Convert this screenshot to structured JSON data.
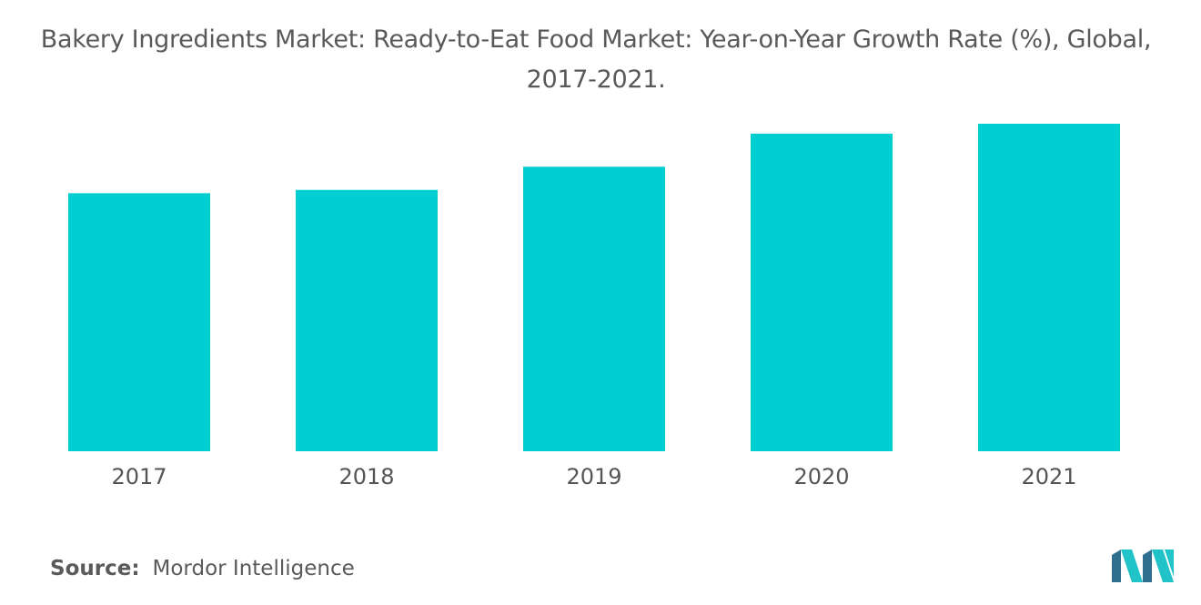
{
  "title_line1": "Bakery Ingredients Market: Ready-to-Eat Food Market: Year-on-Year Growth Rate (%), Global,",
  "title_line2": "2017-2021.",
  "source": {
    "label": "Source:",
    "value": "Mordor Intelligence"
  },
  "logo": "mordor-intelligence-logo",
  "colors": {
    "bar": "#00CED1",
    "logo_dark": "#2E6E8E",
    "logo_light": "#1FC3C8"
  },
  "chart_data": {
    "type": "bar",
    "title": "Bakery Ingredients Market: Ready-to-Eat Food Market: Year-on-Year Growth Rate (%), Global, 2017-2021.",
    "categories": [
      "2017",
      "2018",
      "2019",
      "2020",
      "2021"
    ],
    "values": [
      3.9,
      3.95,
      4.3,
      4.8,
      4.95
    ],
    "ylim": [
      0,
      5.5
    ],
    "grid": false,
    "legend": "none",
    "xlabel": "",
    "ylabel": ""
  }
}
